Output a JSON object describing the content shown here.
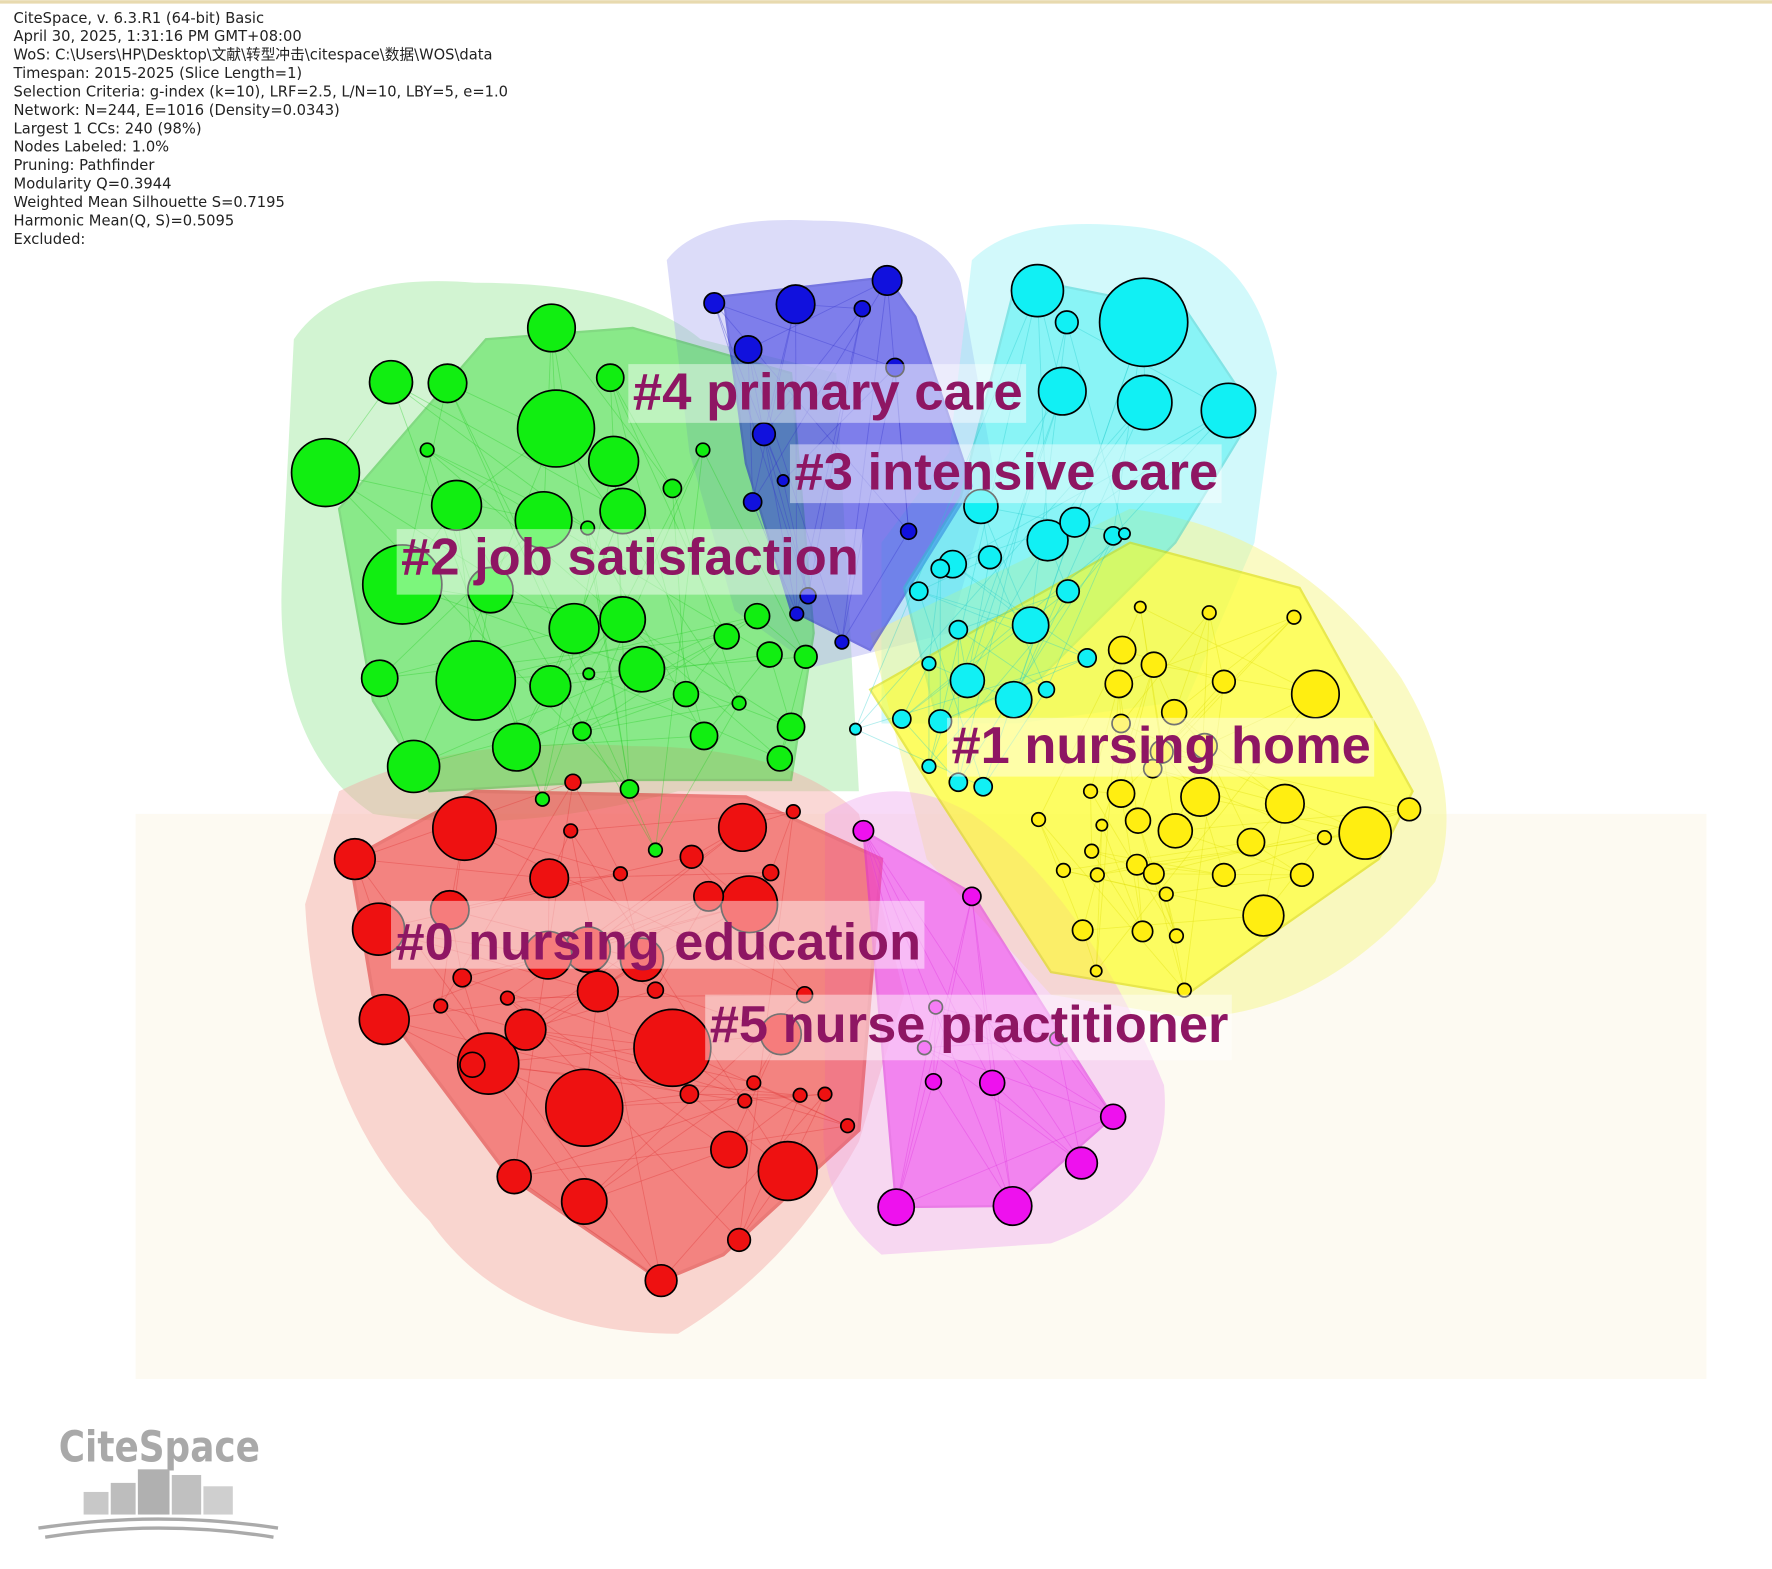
{
  "info": {
    "lines": [
      "CiteSpace, v. 6.3.R1 (64-bit) Basic",
      "April 30, 2025, 1:31:16 PM GMT+08:00",
      "WoS: C:\\Users\\HP\\Desktop\\文献\\转型冲击\\citespace\\数据\\WOS\\data",
      "Timespan: 2015-2025 (Slice Length=1)",
      "Selection Criteria: g-index (k=10), LRF=2.5, L/N=10, LBY=5, e=1.0",
      "Network: N=244, E=1016 (Density=0.0343)",
      "Largest 1 CCs: 240 (98%)",
      "Nodes Labeled: 1.0%",
      "Pruning: Pathfinder",
      "Modularity Q=0.3944",
      "Weighted Mean Silhouette S=0.7195",
      "Harmonic Mean(Q, S)=0.5095",
      "Excluded:"
    ]
  },
  "clusters": [
    {
      "label": "#4 primary care"
    },
    {
      "label": "#3 intensive care"
    },
    {
      "label": "#2 job satisfaction"
    },
    {
      "label": "#1 nursing home"
    },
    {
      "label": "#0 nursing education"
    },
    {
      "label": "#5 nurse practitioner"
    }
  ],
  "logo": {
    "text": "CiteSpace"
  }
}
